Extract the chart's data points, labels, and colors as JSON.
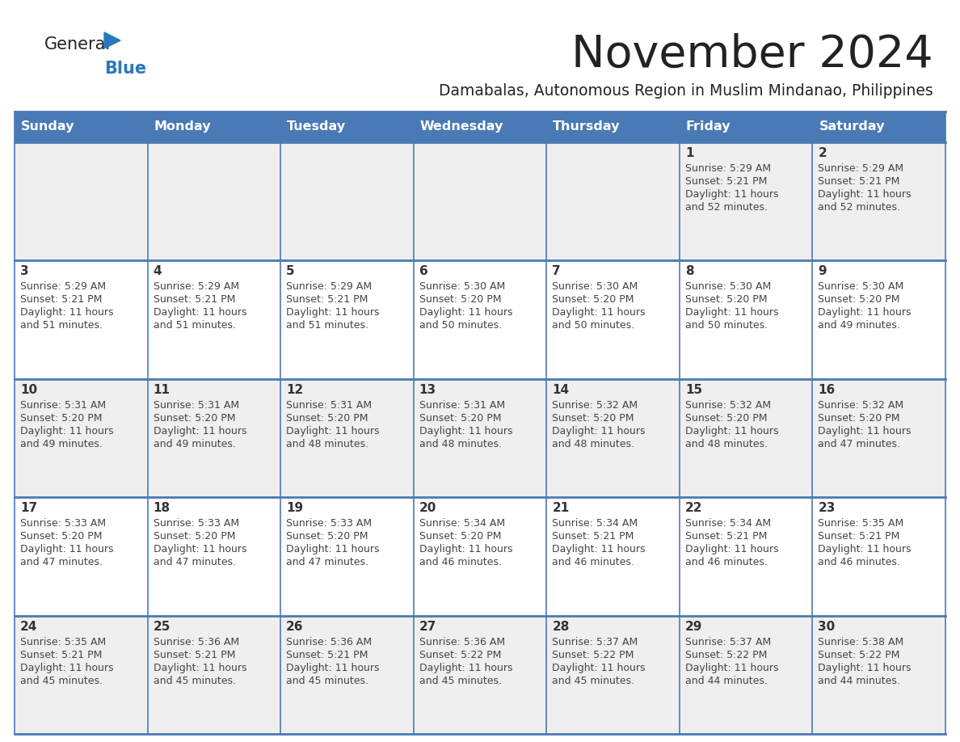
{
  "title": "November 2024",
  "subtitle": "Damabalas, Autonomous Region in Muslim Mindanao, Philippines",
  "days_of_week": [
    "Sunday",
    "Monday",
    "Tuesday",
    "Wednesday",
    "Thursday",
    "Friday",
    "Saturday"
  ],
  "header_bg": "#4a7ab5",
  "header_text": "#FFFFFF",
  "cell_bg_odd": "#EFEFEF",
  "cell_bg_even": "#FFFFFF",
  "cell_border_color": "#4a7ab5",
  "day_number_color": "#333333",
  "day_text_color": "#444444",
  "title_color": "#222222",
  "subtitle_color": "#222222",
  "logo_general_color": "#222222",
  "logo_blue_color": "#2878be",
  "logo_triangle_color": "#2878be",
  "weeks": [
    [
      {
        "day": 0,
        "sunrise": "",
        "sunset": "",
        "daylight": ""
      },
      {
        "day": 0,
        "sunrise": "",
        "sunset": "",
        "daylight": ""
      },
      {
        "day": 0,
        "sunrise": "",
        "sunset": "",
        "daylight": ""
      },
      {
        "day": 0,
        "sunrise": "",
        "sunset": "",
        "daylight": ""
      },
      {
        "day": 0,
        "sunrise": "",
        "sunset": "",
        "daylight": ""
      },
      {
        "day": 1,
        "sunrise": "5:29 AM",
        "sunset": "5:21 PM",
        "daylight": "11 hours and 52 minutes."
      },
      {
        "day": 2,
        "sunrise": "5:29 AM",
        "sunset": "5:21 PM",
        "daylight": "11 hours and 52 minutes."
      }
    ],
    [
      {
        "day": 3,
        "sunrise": "5:29 AM",
        "sunset": "5:21 PM",
        "daylight": "11 hours and 51 minutes."
      },
      {
        "day": 4,
        "sunrise": "5:29 AM",
        "sunset": "5:21 PM",
        "daylight": "11 hours and 51 minutes."
      },
      {
        "day": 5,
        "sunrise": "5:29 AM",
        "sunset": "5:21 PM",
        "daylight": "11 hours and 51 minutes."
      },
      {
        "day": 6,
        "sunrise": "5:30 AM",
        "sunset": "5:20 PM",
        "daylight": "11 hours and 50 minutes."
      },
      {
        "day": 7,
        "sunrise": "5:30 AM",
        "sunset": "5:20 PM",
        "daylight": "11 hours and 50 minutes."
      },
      {
        "day": 8,
        "sunrise": "5:30 AM",
        "sunset": "5:20 PM",
        "daylight": "11 hours and 50 minutes."
      },
      {
        "day": 9,
        "sunrise": "5:30 AM",
        "sunset": "5:20 PM",
        "daylight": "11 hours and 49 minutes."
      }
    ],
    [
      {
        "day": 10,
        "sunrise": "5:31 AM",
        "sunset": "5:20 PM",
        "daylight": "11 hours and 49 minutes."
      },
      {
        "day": 11,
        "sunrise": "5:31 AM",
        "sunset": "5:20 PM",
        "daylight": "11 hours and 49 minutes."
      },
      {
        "day": 12,
        "sunrise": "5:31 AM",
        "sunset": "5:20 PM",
        "daylight": "11 hours and 48 minutes."
      },
      {
        "day": 13,
        "sunrise": "5:31 AM",
        "sunset": "5:20 PM",
        "daylight": "11 hours and 48 minutes."
      },
      {
        "day": 14,
        "sunrise": "5:32 AM",
        "sunset": "5:20 PM",
        "daylight": "11 hours and 48 minutes."
      },
      {
        "day": 15,
        "sunrise": "5:32 AM",
        "sunset": "5:20 PM",
        "daylight": "11 hours and 48 minutes."
      },
      {
        "day": 16,
        "sunrise": "5:32 AM",
        "sunset": "5:20 PM",
        "daylight": "11 hours and 47 minutes."
      }
    ],
    [
      {
        "day": 17,
        "sunrise": "5:33 AM",
        "sunset": "5:20 PM",
        "daylight": "11 hours and 47 minutes."
      },
      {
        "day": 18,
        "sunrise": "5:33 AM",
        "sunset": "5:20 PM",
        "daylight": "11 hours and 47 minutes."
      },
      {
        "day": 19,
        "sunrise": "5:33 AM",
        "sunset": "5:20 PM",
        "daylight": "11 hours and 47 minutes."
      },
      {
        "day": 20,
        "sunrise": "5:34 AM",
        "sunset": "5:20 PM",
        "daylight": "11 hours and 46 minutes."
      },
      {
        "day": 21,
        "sunrise": "5:34 AM",
        "sunset": "5:21 PM",
        "daylight": "11 hours and 46 minutes."
      },
      {
        "day": 22,
        "sunrise": "5:34 AM",
        "sunset": "5:21 PM",
        "daylight": "11 hours and 46 minutes."
      },
      {
        "day": 23,
        "sunrise": "5:35 AM",
        "sunset": "5:21 PM",
        "daylight": "11 hours and 46 minutes."
      }
    ],
    [
      {
        "day": 24,
        "sunrise": "5:35 AM",
        "sunset": "5:21 PM",
        "daylight": "11 hours and 45 minutes."
      },
      {
        "day": 25,
        "sunrise": "5:36 AM",
        "sunset": "5:21 PM",
        "daylight": "11 hours and 45 minutes."
      },
      {
        "day": 26,
        "sunrise": "5:36 AM",
        "sunset": "5:21 PM",
        "daylight": "11 hours and 45 minutes."
      },
      {
        "day": 27,
        "sunrise": "5:36 AM",
        "sunset": "5:22 PM",
        "daylight": "11 hours and 45 minutes."
      },
      {
        "day": 28,
        "sunrise": "5:37 AM",
        "sunset": "5:22 PM",
        "daylight": "11 hours and 45 minutes."
      },
      {
        "day": 29,
        "sunrise": "5:37 AM",
        "sunset": "5:22 PM",
        "daylight": "11 hours and 44 minutes."
      },
      {
        "day": 30,
        "sunrise": "5:38 AM",
        "sunset": "5:22 PM",
        "daylight": "11 hours and 44 minutes."
      }
    ]
  ]
}
